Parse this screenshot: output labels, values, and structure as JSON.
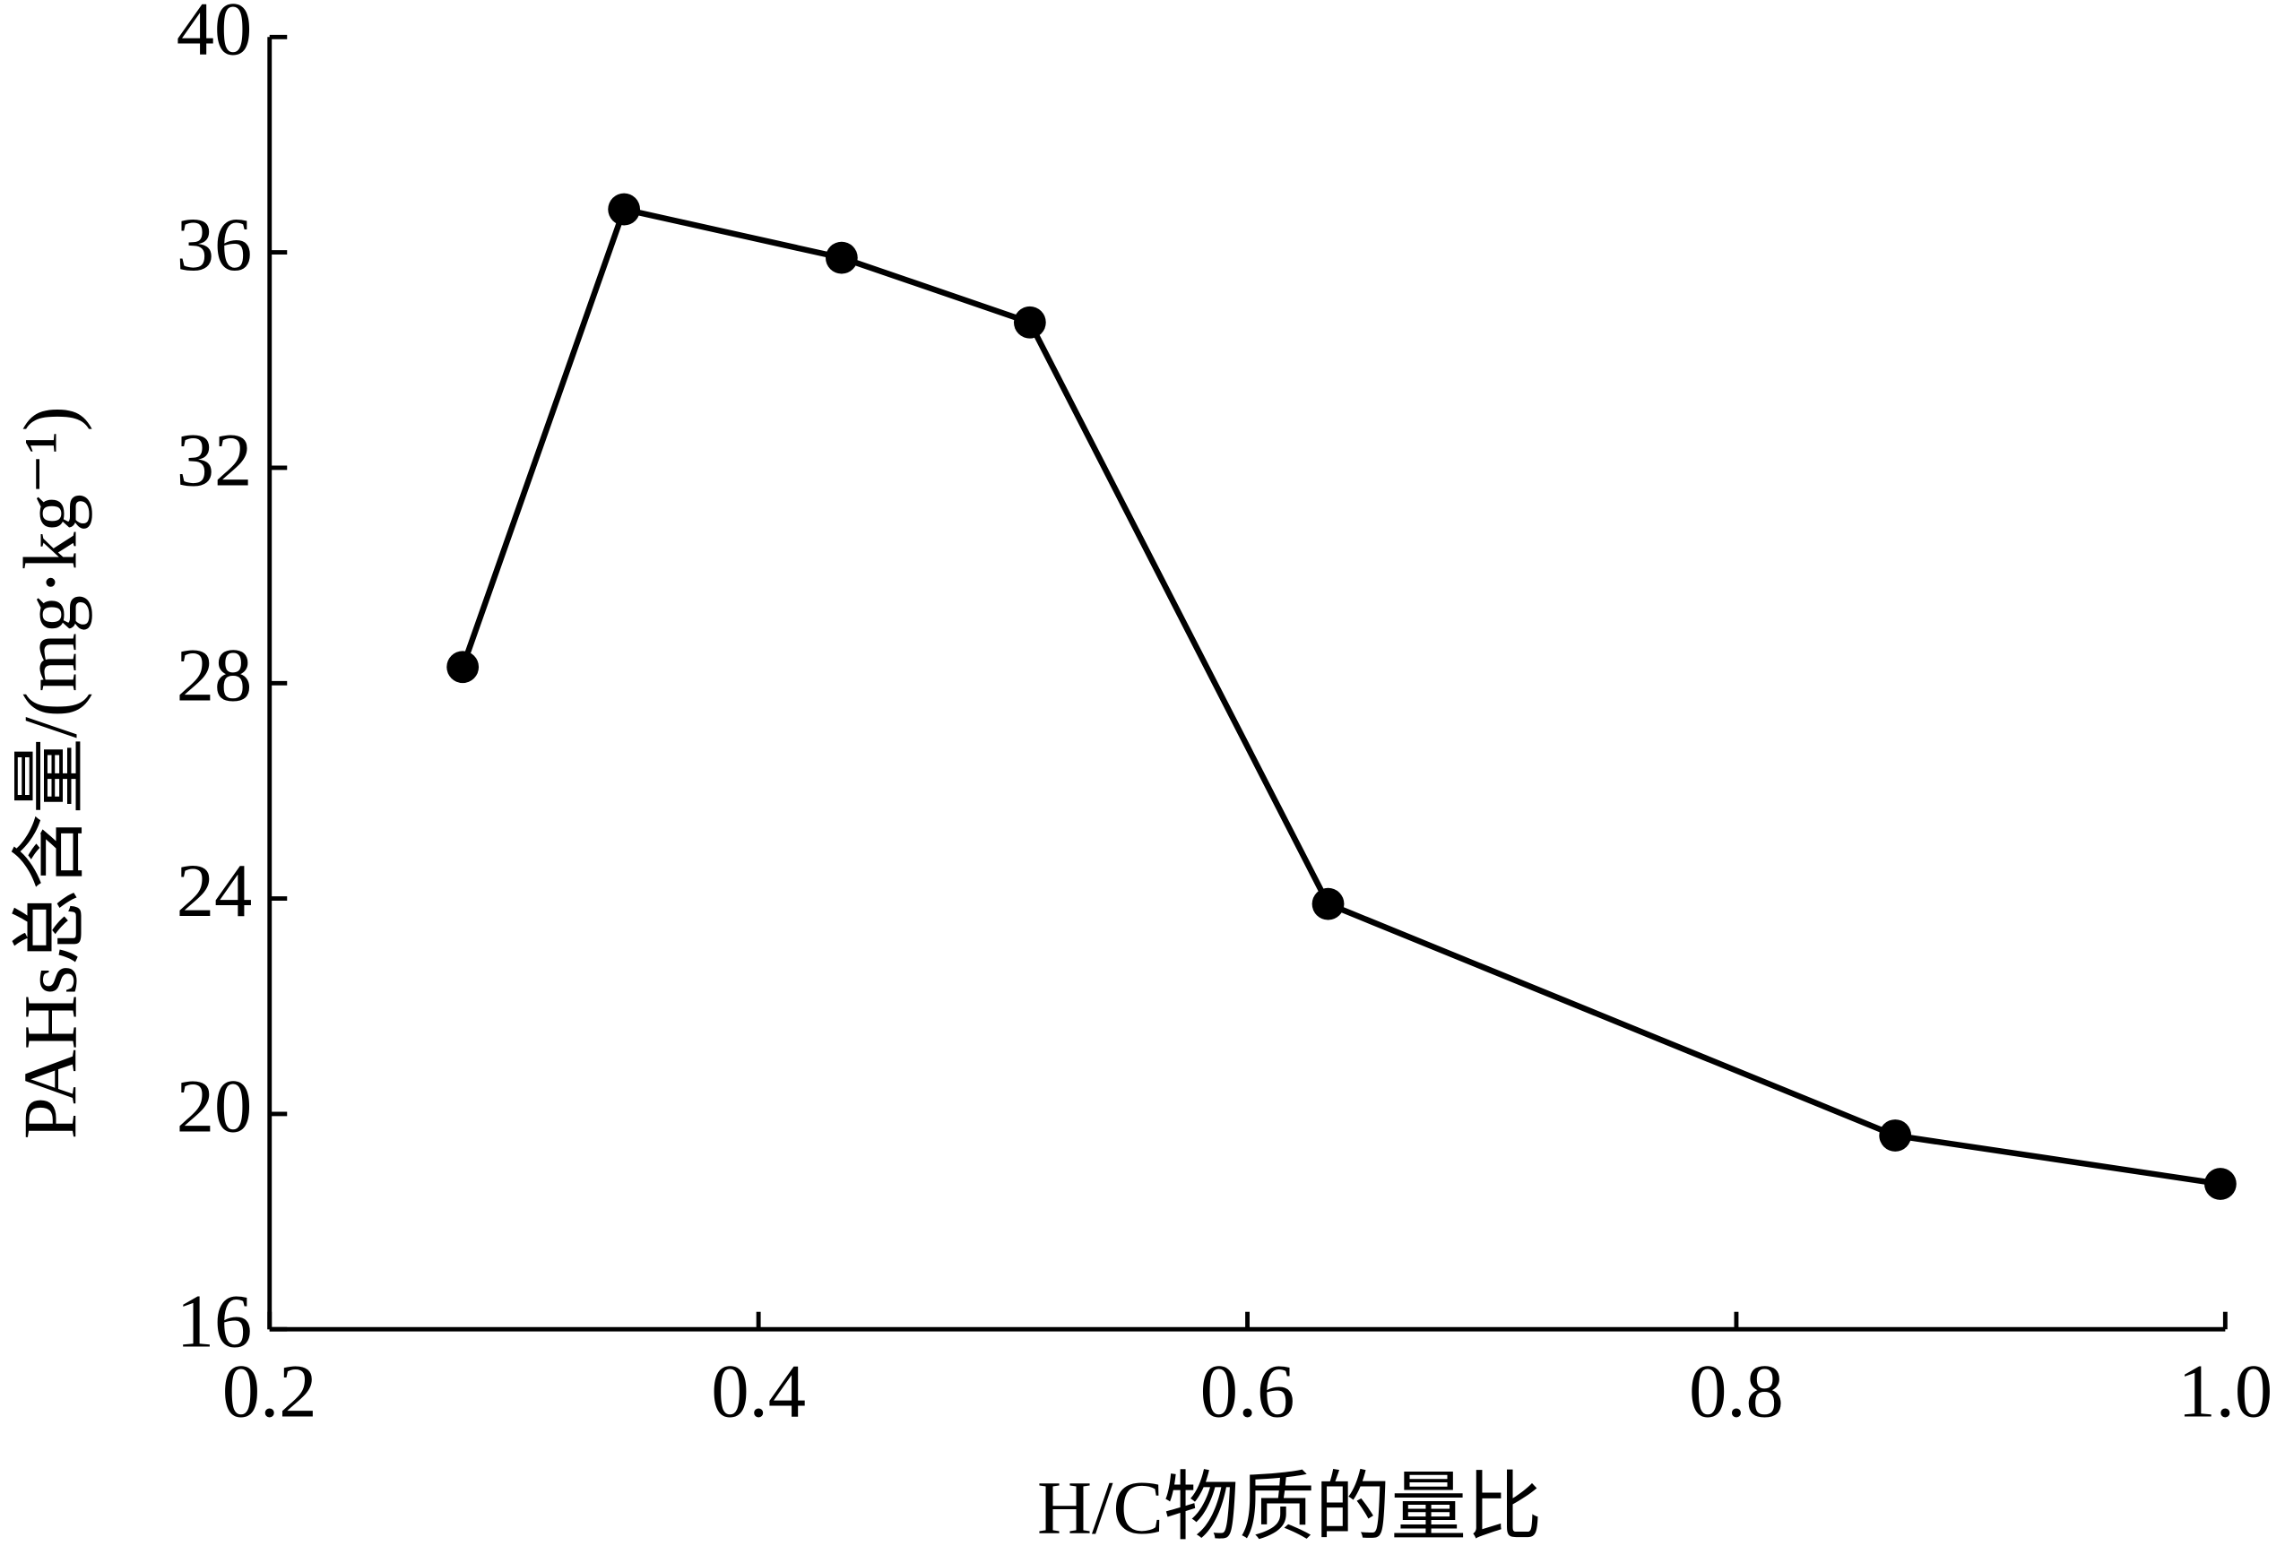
{
  "chart_data": {
    "type": "line",
    "x_label": "H/C物质的量比",
    "y_label": "PAHs总含量/(mg·kg⁻¹)",
    "x": [
      0.279,
      0.345,
      0.434,
      0.511,
      0.633,
      0.865,
      0.998
    ],
    "series": [
      {
        "color": "#000000",
        "values": [
          28.3,
          36.8,
          35.9,
          34.7,
          23.9,
          19.6,
          18.7
        ]
      }
    ],
    "xlim": [
      0.2,
      1.0
    ],
    "xticks": [
      0.2,
      0.4,
      0.6,
      0.8,
      {
        "value": 1.0,
        "label": "1.0"
      }
    ],
    "ylim": [
      16,
      40
    ],
    "yticks": [
      16,
      20,
      24,
      28,
      32,
      36,
      40
    ]
  }
}
